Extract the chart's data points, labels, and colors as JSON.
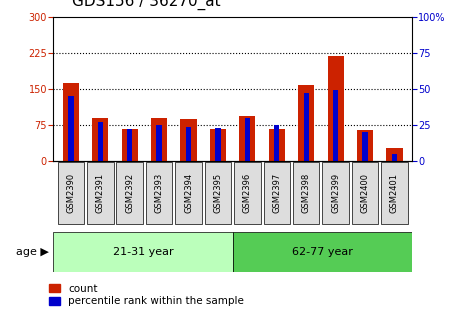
{
  "title": "GDS156 / 36270_at",
  "samples": [
    "GSM2390",
    "GSM2391",
    "GSM2392",
    "GSM2393",
    "GSM2394",
    "GSM2395",
    "GSM2396",
    "GSM2397",
    "GSM2398",
    "GSM2399",
    "GSM2400",
    "GSM2401"
  ],
  "counts": [
    163,
    90,
    68,
    90,
    88,
    68,
    95,
    68,
    158,
    218,
    65,
    27
  ],
  "percentiles": [
    45,
    27,
    22,
    25,
    24,
    23,
    30,
    25,
    47,
    49,
    20,
    5
  ],
  "groups": [
    {
      "label": "21-31 year",
      "start": 0,
      "end": 5,
      "color": "#bbffbb"
    },
    {
      "label": "62-77 year",
      "start": 6,
      "end": 11,
      "color": "#55cc55"
    }
  ],
  "age_label": "age",
  "ylim_left": [
    0,
    300
  ],
  "ylim_right": [
    0,
    100
  ],
  "yticks_left": [
    0,
    75,
    150,
    225,
    300
  ],
  "yticks_right": [
    0,
    25,
    50,
    75,
    100
  ],
  "bar_color_red": "#cc2200",
  "bar_color_blue": "#0000cc",
  "grid_color": "black",
  "legend_count_label": "count",
  "legend_pct_label": "percentile rank within the sample",
  "background_color": "white",
  "tick_color_left": "#cc2200",
  "tick_color_right": "#0000cc",
  "title_fontsize": 11,
  "tick_fontsize": 7,
  "label_fontsize": 8,
  "cell_bg_color": "#dddddd"
}
